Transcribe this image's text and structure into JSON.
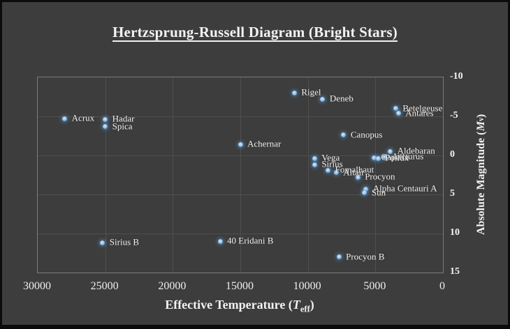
{
  "window": {
    "background_color": "#3d3d3d",
    "frame_color": "#0b0b0b"
  },
  "title": {
    "text": "Hertzsprung-Russell Diagram (Bright Stars)"
  },
  "chart_data": {
    "type": "scatter",
    "title": "Hertzsprung-Russell Diagram (Bright Stars)",
    "xlabel": "Effective Temperature (T_eff)",
    "ylabel": "Absolute Magnitude (M_v)",
    "xlabel_parts": {
      "prefix": "Effective Temperature (",
      "sym": "T",
      "sub": "eff",
      "suffix": ")"
    },
    "ylabel_parts": {
      "prefix": "Absolute Magnitude (",
      "sym": "M",
      "sub": "v",
      "suffix": ")"
    },
    "x_axis": {
      "left_value": 30000,
      "right_value": 0,
      "reversed": true,
      "ticks": [
        30000,
        25000,
        20000,
        15000,
        10000,
        5000,
        0
      ],
      "grid": true
    },
    "y_axis": {
      "top_value": -10,
      "bottom_value": 15,
      "reversed": true,
      "ticks": [
        -10,
        -5,
        0,
        5,
        10,
        15
      ],
      "grid": true,
      "side": "right"
    },
    "legend": "none",
    "marker_color": "#5b9bd5",
    "grid_color": "#4f4f4f",
    "axis_border_color": "#7c7c7c",
    "text_color": "#f2f2f2",
    "points": [
      {
        "name": "Acrux",
        "teff": 28000,
        "mv": -4.7
      },
      {
        "name": "Hadar",
        "teff": 25000,
        "mv": -4.6
      },
      {
        "name": "Spica",
        "teff": 25000,
        "mv": -3.7
      },
      {
        "name": "Rigel",
        "teff": 11000,
        "mv": -8.0
      },
      {
        "name": "Deneb",
        "teff": 8900,
        "mv": -7.2
      },
      {
        "name": "Betelgeuse",
        "teff": 3500,
        "mv": -6.0
      },
      {
        "name": "Antares",
        "teff": 3300,
        "mv": -5.4
      },
      {
        "name": "Canopus",
        "teff": 7350,
        "mv": -2.6
      },
      {
        "name": "Achernar",
        "teff": 15000,
        "mv": -1.4
      },
      {
        "name": "Aldebaran",
        "teff": 3900,
        "mv": -0.5
      },
      {
        "name": "Capella",
        "teff": 5100,
        "mv": 0.3
      },
      {
        "name": "Arcturus",
        "teff": 4300,
        "mv": 0.2
      },
      {
        "name": "Pollux",
        "teff": 4800,
        "mv": 0.4
      },
      {
        "name": "Vega",
        "teff": 9500,
        "mv": 0.4
      },
      {
        "name": "Sirius",
        "teff": 9500,
        "mv": 1.2
      },
      {
        "name": "Fomalhaut",
        "teff": 8500,
        "mv": 1.9
      },
      {
        "name": "Altair",
        "teff": 7900,
        "mv": 2.2
      },
      {
        "name": "Procyon",
        "teff": 6300,
        "mv": 2.8
      },
      {
        "name": "Alpha Centauri A",
        "teff": 5700,
        "mv": 4.3
      },
      {
        "name": "Sun",
        "teff": 5800,
        "mv": 4.8
      },
      {
        "name": "Sirius B",
        "teff": 25200,
        "mv": 11.2
      },
      {
        "name": "40 Eridani B",
        "teff": 16500,
        "mv": 11.0
      },
      {
        "name": "Procyon B",
        "teff": 7700,
        "mv": 13.0
      }
    ]
  }
}
